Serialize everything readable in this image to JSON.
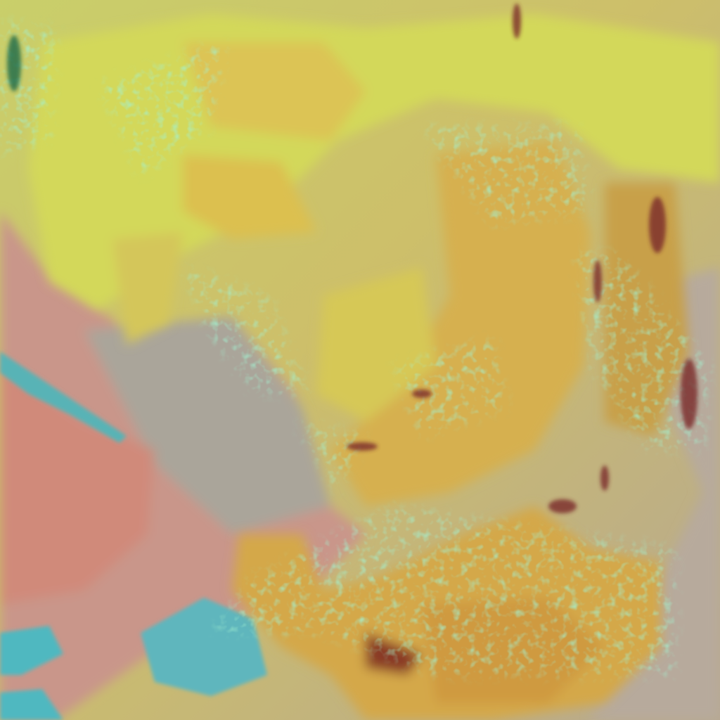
{
  "image": {
    "kind": "false-color satellite imagery",
    "palette": {
      "cloud_yellow": "#d9d85a",
      "cloud_orange": "#d5a848",
      "cloud_edge_green": "#5fe0a0",
      "land_pink": "#cf8f7e",
      "land_gray": "#a8a496",
      "water_cyan": "#4fb8c0",
      "convective_dark": "#7a2a2a"
    }
  }
}
